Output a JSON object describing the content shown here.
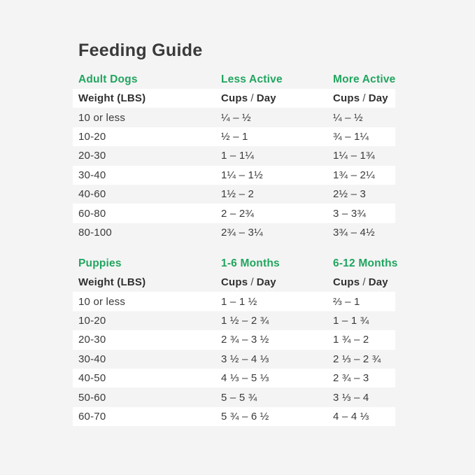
{
  "page": {
    "title": "Feeding Guide",
    "background_color": "#f4f4f5",
    "row_highlight_color": "#ffffff",
    "accent_green": "#21a55e",
    "text_color": "#3a3a3a"
  },
  "labels": {
    "weight_header": "Weight (LBS)",
    "cups": "Cups",
    "slash": "/",
    "day": "Day"
  },
  "chart_data": [
    {
      "type": "table",
      "section": "Adult Dogs",
      "col2_header": "Less Active",
      "col3_header": "More Active",
      "unit": "Cups / Day",
      "columns": [
        "Weight (LBS)",
        "Less Active (Cups / Day)",
        "More Active (Cups / Day)"
      ],
      "rows": [
        [
          "10 or less",
          "¼ – ½",
          "¼ – ½"
        ],
        [
          "10-20",
          "½ – 1",
          "¾ – 1¼"
        ],
        [
          "20-30",
          "1 – 1¼",
          "1¼ – 1¾"
        ],
        [
          "30-40",
          "1¼ – 1½",
          "1¾ – 2¼"
        ],
        [
          "40-60",
          "1½ – 2",
          "2½ – 3"
        ],
        [
          "60-80",
          "2 – 2¾",
          "3 – 3¾"
        ],
        [
          "80-100",
          "2¾ – 3¼",
          "3¾ – 4½"
        ]
      ]
    },
    {
      "type": "table",
      "section": "Puppies",
      "col2_header": "1-6 Months",
      "col3_header": "6-12 Months",
      "unit": "Cups / Day",
      "columns": [
        "Weight (LBS)",
        "1-6 Months (Cups / Day)",
        "6-12 Months (Cups / Day)"
      ],
      "rows": [
        [
          "10 or less",
          "1 – 1 ½",
          "⅔ – 1"
        ],
        [
          "10-20",
          "1 ½ – 2 ¾",
          "1 – 1 ¾"
        ],
        [
          "20-30",
          "2 ¾ – 3 ½",
          "1 ¾ – 2"
        ],
        [
          "30-40",
          "3 ½ – 4 ⅓",
          "2 ⅓ – 2 ¾"
        ],
        [
          "40-50",
          "4 ⅓ – 5 ⅓",
          "2 ¾ – 3"
        ],
        [
          "50-60",
          "5 – 5 ¾",
          "3 ⅓ – 4"
        ],
        [
          "60-70",
          "5 ¾ – 6 ½",
          "4 – 4 ⅓"
        ]
      ]
    }
  ]
}
